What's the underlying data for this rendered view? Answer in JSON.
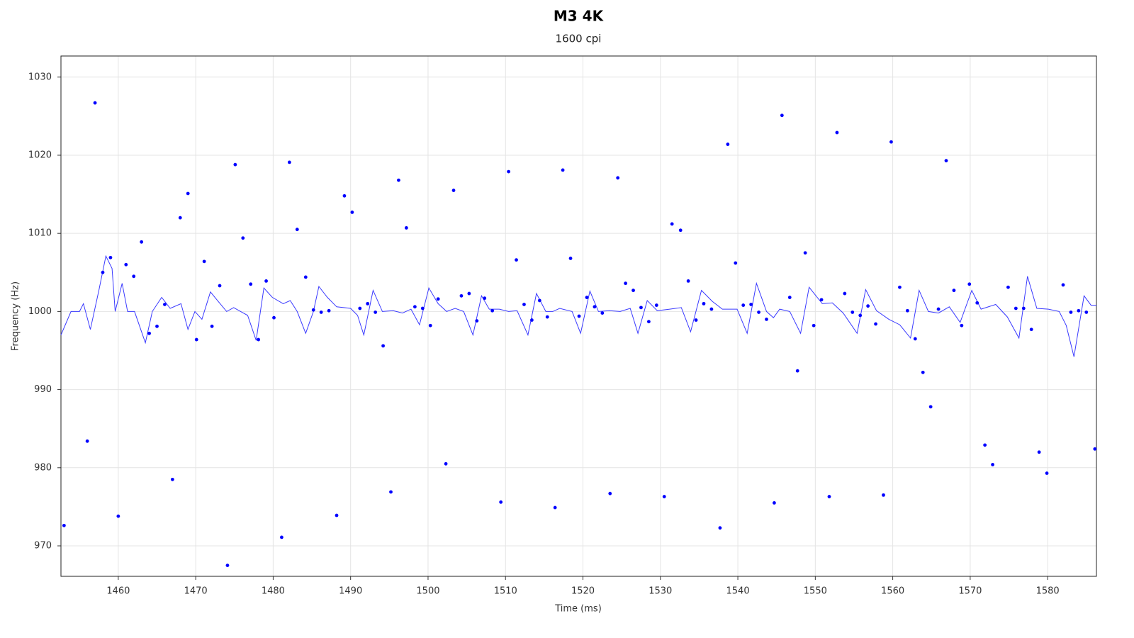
{
  "chart_data": {
    "type": "scatter",
    "title": "M3 4K",
    "subtitle": "1600 cpi",
    "x_label": "Time (ms)",
    "y_label": "Frequency (Hz)",
    "xlim": [
      1452.6,
      1586.3
    ],
    "ylim": [
      966.1,
      1032.7
    ],
    "xticks": [
      1460,
      1470,
      1480,
      1490,
      1500,
      1510,
      1520,
      1530,
      1540,
      1550,
      1560,
      1570,
      1580
    ],
    "yticks": [
      970,
      980,
      990,
      1000,
      1010,
      1020,
      1030
    ],
    "grid": true,
    "series": [
      {
        "mode": "markers",
        "color": "#0000ff",
        "x": [
          1453.0,
          1456.0,
          1457.0,
          1458.0,
          1459.0,
          1460.0,
          1461.0,
          1462.0,
          1463.0,
          1464.0,
          1465.0,
          1466.0,
          1467.0,
          1468.0,
          1469.0,
          1470.1,
          1471.1,
          1472.1,
          1473.1,
          1474.1,
          1475.1,
          1476.1,
          1477.1,
          1478.1,
          1479.1,
          1480.1,
          1481.1,
          1482.1,
          1483.1,
          1484.2,
          1485.2,
          1486.2,
          1487.2,
          1488.2,
          1489.2,
          1490.2,
          1491.2,
          1492.2,
          1493.2,
          1494.2,
          1495.2,
          1496.2,
          1497.2,
          1498.3,
          1499.3,
          1500.3,
          1501.3,
          1502.3,
          1503.3,
          1504.3,
          1505.3,
          1506.3,
          1507.3,
          1508.3,
          1509.4,
          1510.4,
          1511.4,
          1512.4,
          1513.4,
          1514.4,
          1515.4,
          1516.4,
          1517.4,
          1518.4,
          1519.5,
          1520.5,
          1521.5,
          1522.5,
          1523.5,
          1524.5,
          1525.5,
          1526.5,
          1527.5,
          1528.5,
          1529.5,
          1530.5,
          1531.5,
          1532.6,
          1533.6,
          1534.6,
          1535.6,
          1536.6,
          1537.7,
          1538.7,
          1539.7,
          1540.7,
          1541.7,
          1542.7,
          1543.7,
          1544.7,
          1545.7,
          1546.7,
          1547.7,
          1548.7,
          1549.8,
          1550.8,
          1551.8,
          1552.8,
          1553.8,
          1554.8,
          1555.8,
          1556.8,
          1557.8,
          1558.8,
          1559.8,
          1560.9,
          1561.9,
          1562.9,
          1563.9,
          1564.9,
          1565.9,
          1566.9,
          1567.9,
          1568.9,
          1569.9,
          1570.9,
          1571.9,
          1572.9,
          1574.9,
          1575.9,
          1576.9,
          1577.9,
          1578.9,
          1579.9,
          1582.0,
          1583.0,
          1584.0,
          1585.0,
          1586.1
        ],
        "values": [
          972.6,
          983.4,
          1026.7,
          1005.0,
          1006.9,
          973.8,
          1006.0,
          1004.5,
          1008.9,
          997.2,
          998.1,
          1000.9,
          978.5,
          1012.0,
          1015.1,
          996.4,
          1006.4,
          998.1,
          1003.3,
          967.5,
          1018.8,
          1009.4,
          1003.5,
          996.4,
          1003.9,
          999.2,
          971.1,
          1019.1,
          1010.5,
          1004.4,
          1000.2,
          999.9,
          1000.1,
          973.9,
          1014.8,
          1012.7,
          1000.4,
          1001.0,
          999.9,
          995.6,
          976.9,
          1016.8,
          1010.7,
          1000.6,
          1000.4,
          998.2,
          1001.6,
          980.5,
          1015.5,
          1002.0,
          1002.3,
          998.8,
          1001.7,
          1000.1,
          975.6,
          1017.9,
          1006.6,
          1000.9,
          998.9,
          1001.4,
          999.3,
          974.9,
          1018.1,
          1006.8,
          999.4,
          1001.8,
          1000.6,
          999.8,
          976.7,
          1017.1,
          1003.6,
          1002.7,
          1000.5,
          998.7,
          1000.8,
          976.3,
          1011.2,
          1010.4,
          1003.9,
          998.9,
          1001.0,
          1000.3,
          972.3,
          1021.4,
          1006.2,
          1000.8,
          1000.9,
          999.9,
          999.0,
          975.5,
          1025.1,
          1001.8,
          992.4,
          1007.5,
          998.2,
          1001.5,
          976.3,
          1022.9,
          1002.3,
          999.9,
          999.5,
          1000.7,
          998.4,
          976.5,
          1021.7,
          1003.1,
          1000.1,
          996.5,
          992.2,
          987.8,
          1000.3,
          1019.3,
          1002.7,
          998.2,
          1003.5,
          1001.1,
          982.9,
          980.4,
          1003.1,
          1000.4,
          1000.4,
          997.7,
          982.0,
          979.3,
          1003.4,
          999.9,
          1000.1,
          999.9,
          982.4
        ]
      },
      {
        "mode": "line",
        "color": "#3a3aff",
        "x": [
          1452.6,
          1453.9,
          1455.0,
          1455.5,
          1456.4,
          1457.5,
          1458.4,
          1459.2,
          1459.6,
          1460.5,
          1461.2,
          1462.1,
          1463.5,
          1464.4,
          1465.6,
          1466.7,
          1468.1,
          1469.0,
          1469.9,
          1470.8,
          1471.9,
          1472.9,
          1474.0,
          1474.9,
          1475.8,
          1476.7,
          1477.8,
          1478.8,
          1479.9,
          1481.3,
          1482.2,
          1483.1,
          1484.2,
          1485.2,
          1485.9,
          1487.0,
          1488.2,
          1490.0,
          1490.9,
          1491.7,
          1492.9,
          1494.1,
          1495.5,
          1496.7,
          1497.8,
          1498.9,
          1500.1,
          1501.3,
          1502.4,
          1503.5,
          1504.6,
          1505.8,
          1506.9,
          1507.9,
          1509.2,
          1510.4,
          1511.5,
          1512.9,
          1514.0,
          1515.2,
          1516.1,
          1517.0,
          1518.6,
          1519.7,
          1520.9,
          1522.0,
          1523.4,
          1524.8,
          1526.1,
          1527.1,
          1528.3,
          1529.6,
          1531.2,
          1532.7,
          1533.9,
          1535.3,
          1536.7,
          1538.0,
          1539.9,
          1541.2,
          1542.4,
          1543.7,
          1544.6,
          1545.4,
          1546.7,
          1548.1,
          1549.2,
          1550.9,
          1552.2,
          1553.6,
          1555.4,
          1556.5,
          1557.9,
          1559.5,
          1560.9,
          1562.3,
          1563.4,
          1564.6,
          1565.9,
          1567.3,
          1568.7,
          1570.2,
          1571.4,
          1573.3,
          1574.8,
          1576.3,
          1577.4,
          1578.6,
          1580.1,
          1581.5,
          1582.4,
          1583.4,
          1584.7,
          1585.6,
          1586.3
        ],
        "values": [
          997.0,
          1000.0,
          1000.0,
          1001.0,
          997.7,
          1002.7,
          1007.1,
          1005.5,
          1000.0,
          1003.6,
          1000.0,
          1000.0,
          996.0,
          1000.0,
          1001.8,
          1000.4,
          1001.0,
          997.7,
          1000.0,
          999.0,
          1002.5,
          1001.3,
          1000.0,
          1000.5,
          1000.0,
          999.5,
          996.3,
          1003.0,
          1001.8,
          1001.0,
          1001.4,
          1000.0,
          997.2,
          1000.0,
          1003.2,
          1001.8,
          1000.6,
          1000.4,
          999.5,
          997.0,
          1002.7,
          1000.0,
          1000.1,
          999.8,
          1000.3,
          998.3,
          1003.0,
          1001.0,
          1000.0,
          1000.4,
          1000.0,
          997.0,
          1002.0,
          1000.3,
          1000.3,
          1000.0,
          1000.1,
          997.0,
          1002.3,
          1000.0,
          1000.0,
          1000.4,
          1000.0,
          997.2,
          1002.6,
          1000.0,
          1000.1,
          1000.0,
          1000.4,
          997.2,
          1001.4,
          1000.1,
          1000.3,
          1000.5,
          997.4,
          1002.7,
          1001.3,
          1000.3,
          1000.3,
          997.2,
          1003.6,
          1000.0,
          999.2,
          1000.3,
          1000.0,
          997.2,
          1003.1,
          1001.0,
          1001.1,
          999.8,
          997.2,
          1002.8,
          1000.1,
          999.0,
          998.3,
          996.6,
          1002.7,
          1000.0,
          999.8,
          1000.6,
          998.6,
          1002.7,
          1000.3,
          1000.9,
          999.3,
          996.6,
          1004.5,
          1000.4,
          1000.3,
          1000.0,
          998.2,
          994.2,
          1002.0,
          1000.8,
          1000.8
        ]
      }
    ]
  }
}
